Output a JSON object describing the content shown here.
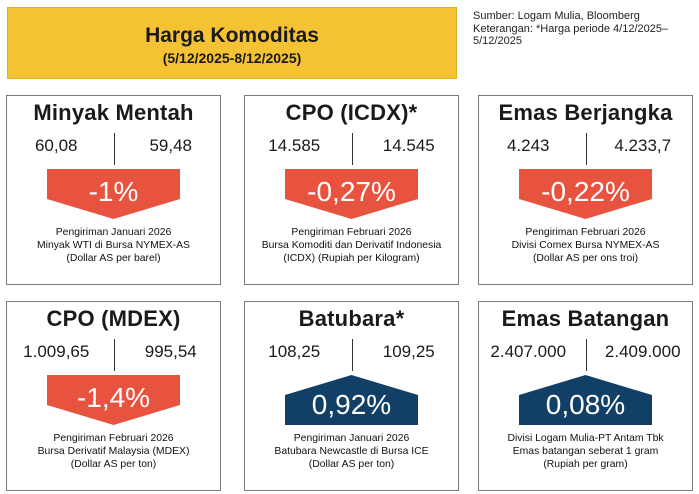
{
  "header": {
    "title": "Harga Komoditas",
    "period": "(5/12/2025-8/12/2025)",
    "source_lines": [
      "Sumber: Logam Mulia, Bloomberg",
      "Keterangan: *Harga periode 4/12/2025–",
      "5/12/2025"
    ]
  },
  "colors": {
    "title_bg": "#f5c233",
    "down": "#e8533f",
    "up": "#123f66"
  },
  "cards": [
    {
      "name": "Minyak Mentah",
      "v1": "60,08",
      "v2": "59,48",
      "change": "-1%",
      "direction": "down",
      "note": [
        "Pengiriman Januari 2026",
        "Minyak WTI di Bursa NYMEX-AS",
        "(Dollar AS per barel)"
      ]
    },
    {
      "name": "CPO (ICDX)*",
      "v1": "14.585",
      "v2": "14.545",
      "change": "-0,27%",
      "direction": "down",
      "note": [
        "Pengiriman Februari 2026",
        "Bursa Komoditi dan Derivatif Indonesia",
        "(ICDX) (Rupiah per Kilogram)"
      ]
    },
    {
      "name": "Emas Berjangka",
      "v1": "4.243",
      "v2": "4.233,7",
      "change": "-0,22%",
      "direction": "down",
      "note": [
        "Pengiriman Februari 2026",
        "Divisi Comex Bursa NYMEX-AS",
        "(Dollar AS per ons troi)"
      ]
    },
    {
      "name": "CPO (MDEX)",
      "v1": "1.009,65",
      "v2": "995,54",
      "change": "-1,4%",
      "direction": "down",
      "note": [
        "Pengiriman Februari 2026",
        "Bursa Derivatif Malaysia (MDEX)",
        "(Dollar AS per ton)"
      ]
    },
    {
      "name": "Batubara*",
      "v1": "108,25",
      "v2": "109,25",
      "change": "0,92%",
      "direction": "up",
      "note": [
        "Pengiriman Januari 2026",
        "Batubara Newcastle di Bursa ICE",
        "(Dollar AS per ton)"
      ]
    },
    {
      "name": "Emas Batangan",
      "v1": "2.407.000",
      "v2": "2.409.000",
      "change": "0,08%",
      "direction": "up",
      "note": [
        "Divisi Logam Mulia-PT Antam Tbk",
        "Emas batangan seberat 1 gram",
        "(Rupiah per gram)"
      ]
    }
  ]
}
